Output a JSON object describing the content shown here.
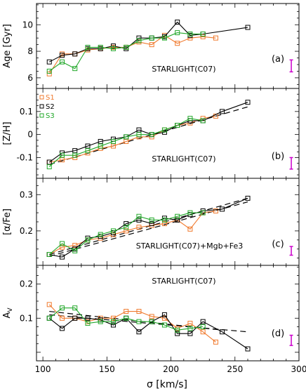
{
  "figure": {
    "xlabel": "σ [km/s]",
    "xlim": [
      95,
      300
    ],
    "xticks": [
      100,
      150,
      200,
      250,
      300
    ],
    "colors": {
      "S1": "#f07a2e",
      "S2": "#000000",
      "S3": "#22a82a",
      "errbar": "#cc00cc",
      "fit": "#000000"
    }
  },
  "chart_data": [
    {
      "type": "line",
      "panel_label": "(a)",
      "annotation": "STARLIGHT(C07)",
      "ylabel": "Age [Gyr]",
      "ylim": [
        5.2,
        11.6
      ],
      "yticks": [
        6,
        8,
        10
      ],
      "series": [
        {
          "key": "S1",
          "x": [
            105,
            115,
            125,
            135,
            145,
            155,
            165,
            175,
            185,
            195,
            205,
            215,
            225,
            235
          ],
          "y": [
            6.3,
            7.8,
            7.8,
            8.1,
            8.2,
            8.3,
            8.3,
            8.7,
            8.5,
            9.2,
            8.6,
            9.0,
            9.1,
            9.0
          ]
        },
        {
          "key": "S2",
          "x": [
            105,
            115,
            125,
            135,
            145,
            155,
            165,
            175,
            185,
            195,
            205,
            215,
            225,
            260
          ],
          "y": [
            7.2,
            7.7,
            7.8,
            8.2,
            8.2,
            8.4,
            8.2,
            9.0,
            9.0,
            9.1,
            10.2,
            9.2,
            9.3,
            9.8
          ]
        },
        {
          "key": "S3",
          "x": [
            105,
            115,
            125,
            135,
            145,
            155,
            165,
            175,
            185,
            195,
            205,
            215,
            225
          ],
          "y": [
            6.5,
            7.2,
            6.7,
            8.3,
            8.3,
            8.2,
            8.3,
            8.8,
            9.0,
            9.0,
            9.4,
            9.3,
            9.3
          ]
        }
      ],
      "errbar": {
        "x": 294,
        "y": 6.9,
        "err": 0.45
      }
    },
    {
      "type": "line",
      "panel_label": "(b)",
      "annotation": "STARLIGHT(C07)",
      "ylabel": "[Z/H]",
      "ylim": [
        -0.19,
        0.2
      ],
      "yticks": [
        -0.1,
        0,
        0.1
      ],
      "legend": {
        "entries": [
          "S1",
          "S2",
          "S3"
        ],
        "position": "top-left"
      },
      "series": [
        {
          "key": "S1",
          "x": [
            105,
            115,
            125,
            135,
            145,
            155,
            165,
            175,
            185,
            195,
            205,
            215,
            225,
            235
          ],
          "y": [
            -0.12,
            -0.11,
            -0.1,
            -0.08,
            -0.06,
            -0.05,
            -0.03,
            -0.01,
            -0.01,
            0.02,
            0.04,
            0.05,
            0.07,
            0.08
          ]
        },
        {
          "key": "S2",
          "x": [
            105,
            115,
            125,
            135,
            145,
            155,
            165,
            175,
            185,
            195,
            205,
            215,
            225,
            240,
            260
          ],
          "y": [
            -0.12,
            -0.08,
            -0.07,
            -0.05,
            -0.03,
            -0.02,
            -0.01,
            0.02,
            0.0,
            0.01,
            0.04,
            0.06,
            0.06,
            0.1,
            0.14
          ]
        },
        {
          "key": "S3",
          "x": [
            105,
            115,
            125,
            135,
            145,
            155,
            165,
            175,
            185,
            195,
            205,
            215,
            225
          ],
          "y": [
            -0.14,
            -0.09,
            -0.09,
            -0.07,
            -0.05,
            -0.03,
            -0.01,
            -0.0,
            0.0,
            0.02,
            0.04,
            0.07,
            0.06
          ]
        }
      ],
      "fits": [
        {
          "x": [
            105,
            260
          ],
          "y": [
            -0.13,
            0.12
          ]
        }
      ],
      "errbar": {
        "x": 294,
        "y": -0.125,
        "err": 0.025
      }
    },
    {
      "type": "line",
      "panel_label": "(c)",
      "annotation": "STARLIGHT(C07)+Mgb+Fe3",
      "ylabel": "[α/Fe]",
      "ylim": [
        0.105,
        0.345
      ],
      "yticks": [
        0.2,
        0.3
      ],
      "series": [
        {
          "key": "S1",
          "x": [
            105,
            115,
            125,
            135,
            145,
            155,
            165,
            175,
            185,
            195,
            205,
            215,
            225,
            235
          ],
          "y": [
            0.135,
            0.155,
            0.16,
            0.175,
            0.18,
            0.19,
            0.2,
            0.21,
            0.215,
            0.22,
            0.23,
            0.205,
            0.25,
            0.255
          ]
        },
        {
          "key": "S2",
          "x": [
            105,
            115,
            125,
            135,
            145,
            155,
            165,
            175,
            185,
            195,
            205,
            215,
            225,
            240,
            260
          ],
          "y": [
            0.135,
            0.128,
            0.15,
            0.18,
            0.185,
            0.195,
            0.22,
            0.23,
            0.22,
            0.235,
            0.23,
            0.245,
            0.255,
            0.26,
            0.29
          ]
        },
        {
          "key": "S3",
          "x": [
            105,
            115,
            125,
            135,
            145,
            155,
            165,
            175,
            185,
            195,
            205,
            215,
            225
          ],
          "y": [
            0.135,
            0.165,
            0.145,
            0.175,
            0.19,
            0.2,
            0.21,
            0.24,
            0.23,
            0.23,
            0.24,
            0.25,
            0.25
          ]
        }
      ],
      "fits": [
        {
          "x": [
            105,
            260
          ],
          "y": [
            0.135,
            0.29
          ]
        },
        {
          "x": [
            105,
            260
          ],
          "y": [
            0.13,
            0.28
          ]
        }
      ],
      "errbar": {
        "x": 294,
        "y": 0.145,
        "err": 0.012
      }
    },
    {
      "type": "line",
      "panel_label": "(d)",
      "annotation": "STARLIGHT(C07)",
      "ylabel": "A_V",
      "ylim": [
        -0.025,
        0.255
      ],
      "yticks": [
        0.1,
        0.2
      ],
      "series": [
        {
          "key": "S1",
          "x": [
            105,
            115,
            125,
            135,
            145,
            155,
            165,
            175,
            185,
            195,
            205,
            215,
            225,
            235
          ],
          "y": [
            0.14,
            0.1,
            0.1,
            0.09,
            0.1,
            0.1,
            0.12,
            0.12,
            0.105,
            0.1,
            0.07,
            0.085,
            0.06,
            0.03
          ]
        },
        {
          "key": "S2",
          "x": [
            105,
            115,
            125,
            135,
            145,
            155,
            165,
            175,
            185,
            195,
            205,
            215,
            225,
            240,
            260
          ],
          "y": [
            0.1,
            0.07,
            0.1,
            0.1,
            0.095,
            0.08,
            0.1,
            0.06,
            0.09,
            0.11,
            0.055,
            0.055,
            0.09,
            0.06,
            0.01
          ]
        },
        {
          "key": "S3",
          "x": [
            105,
            115,
            125,
            135,
            145,
            155,
            165,
            175,
            185,
            195,
            205,
            215,
            225
          ],
          "y": [
            0.1,
            0.13,
            0.13,
            0.085,
            0.09,
            0.09,
            0.1,
            0.09,
            0.09,
            0.08,
            0.065,
            0.07,
            0.075
          ]
        }
      ],
      "fits": [
        {
          "x": [
            105,
            260
          ],
          "y": [
            0.11,
            0.06
          ]
        },
        {
          "x": [
            105,
            240
          ],
          "y": [
            0.12,
            0.065
          ]
        }
      ],
      "errbar": {
        "x": 294,
        "y": 0.035,
        "err": 0.015
      }
    }
  ]
}
